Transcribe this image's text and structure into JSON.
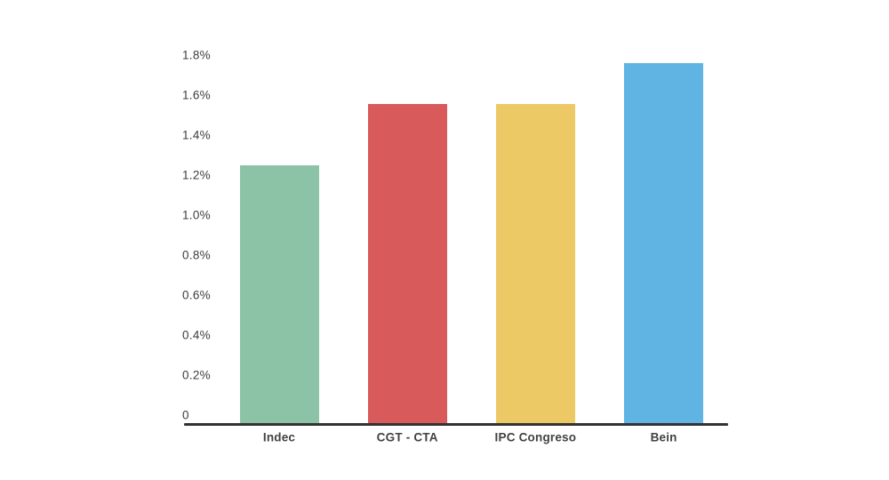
{
  "chart_data": {
    "type": "bar",
    "title": "",
    "xlabel": "",
    "ylabel": "",
    "categories": [
      "Indec",
      "CGT - CTA",
      "IPC Congreso",
      "Bein"
    ],
    "values": [
      1.26,
      1.56,
      1.56,
      1.76
    ],
    "bar_colors": [
      "#8cc3a6",
      "#d85a5a",
      "#edc966",
      "#5fb4e3"
    ],
    "ylim": [
      0,
      1.8
    ],
    "y_ticks": [
      "1.8%",
      "1.6%",
      "1.4%",
      "1.2%",
      "1.0%",
      "0.8%",
      "0.6%",
      "0.4%",
      "0.2%",
      "0"
    ],
    "y_tick_values": [
      1.8,
      1.6,
      1.4,
      1.2,
      1.0,
      0.8,
      0.6,
      0.4,
      0.2,
      0
    ],
    "grid": false,
    "legend": "none",
    "background_color": "#ffffff",
    "axis_line_color": "#333333",
    "y_label_color": "#3d3d3d",
    "x_label_color": "#424242"
  }
}
